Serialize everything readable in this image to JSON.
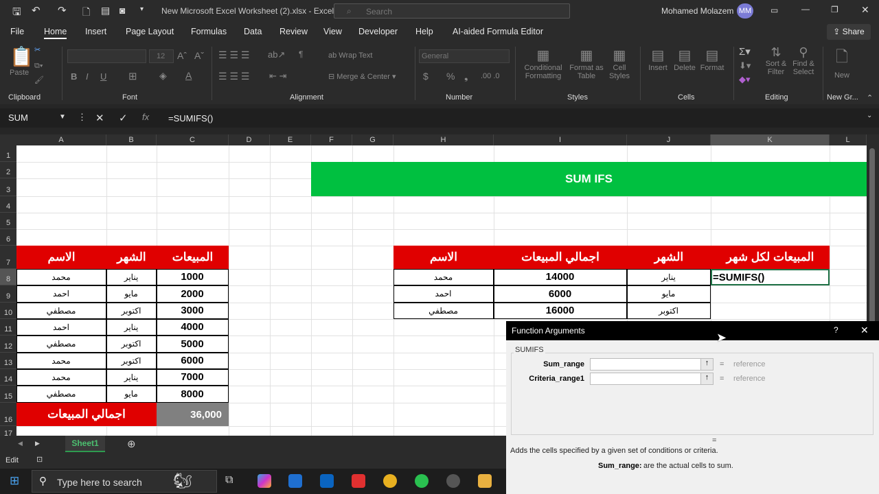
{
  "titlebar": {
    "title": "New Microsoft Excel Worksheet (2).xlsx  -  Excel",
    "search_placeholder": "Search",
    "user": "Mohamed Molazem",
    "initials": "MM"
  },
  "menu": [
    "File",
    "Home",
    "Insert",
    "Page Layout",
    "Formulas",
    "Data",
    "Review",
    "View",
    "Developer",
    "Help",
    "AI-aided Formula Editor"
  ],
  "share": "Share",
  "ribbon": {
    "paste": "Paste",
    "font_size": "12",
    "wrap_text": "Wrap Text",
    "merge_center": "Merge & Center",
    "number_format": "General",
    "conditional": "Conditional",
    "formatting": "Formatting",
    "format_as": "Format as",
    "table": "Table",
    "cell": "Cell",
    "styles": "Styles",
    "insert": "Insert",
    "delete": "Delete",
    "format": "Format",
    "sort": "Sort &",
    "filter": "Filter",
    "find": "Find &",
    "select": "Select",
    "new": "New",
    "groups": [
      "Clipboard",
      "Font",
      "Alignment",
      "Number",
      "Styles",
      "Cells",
      "Editing",
      "New Gr..."
    ]
  },
  "formula_bar": {
    "name_box": "SUM",
    "formula": "=SUMIFS()"
  },
  "columns": [
    "A",
    "B",
    "C",
    "D",
    "E",
    "F",
    "G",
    "H",
    "I",
    "J",
    "K",
    "L"
  ],
  "rows": [
    "1",
    "2",
    "3",
    "4",
    "5",
    "6",
    "7",
    "8",
    "9",
    "10",
    "11",
    "12",
    "13",
    "14",
    "15",
    "16",
    "17"
  ],
  "banner": "SUM IFS",
  "left_table": {
    "headers": [
      "الاسم",
      "الشهر",
      "المبيعات"
    ],
    "rows": [
      [
        "محمد",
        "يناير",
        "1000"
      ],
      [
        "احمد",
        "مايو",
        "2000"
      ],
      [
        "مصطفي",
        "اكتوبر",
        "3000"
      ],
      [
        "احمد",
        "يناير",
        "4000"
      ],
      [
        "مصطفي",
        "اكتوبر",
        "5000"
      ],
      [
        "محمد",
        "اكتوبر",
        "6000"
      ],
      [
        "محمد",
        "يناير",
        "7000"
      ],
      [
        "مصطفي",
        "مايو",
        "8000"
      ]
    ],
    "total_label": "اجمالي المبيعات",
    "total_value": "36,000"
  },
  "right_table": {
    "headers": [
      "الاسم",
      "اجمالي المبيعات",
      "الشهر",
      "المبيعات لكل شهر"
    ],
    "rows": [
      [
        "محمد",
        "14000",
        "يناير",
        "=SUMIFS()"
      ],
      [
        "احمد",
        "6000",
        "مايو",
        ""
      ],
      [
        "مصطفي",
        "16000",
        "اكتوبر",
        ""
      ]
    ]
  },
  "colors": {
    "header_red": "#e00000",
    "banner_green": "#00c040",
    "total_gray": "#808080"
  },
  "sheet_tab": "Sheet1",
  "status": "Edit",
  "taskbar": {
    "search_placeholder": "Type here to search"
  },
  "dialog": {
    "title": "Function Arguments",
    "help": "?",
    "function": "SUMIFS",
    "args": [
      {
        "label": "Sum_range",
        "value": "",
        "result": "reference"
      },
      {
        "label": "Criteria_range1",
        "value": "",
        "result": "reference"
      }
    ],
    "equals": "=",
    "description": "Adds the cells specified by a given set of conditions or criteria.",
    "arg_help_label": "Sum_range:",
    "arg_help_text": "are the actual cells to sum."
  }
}
